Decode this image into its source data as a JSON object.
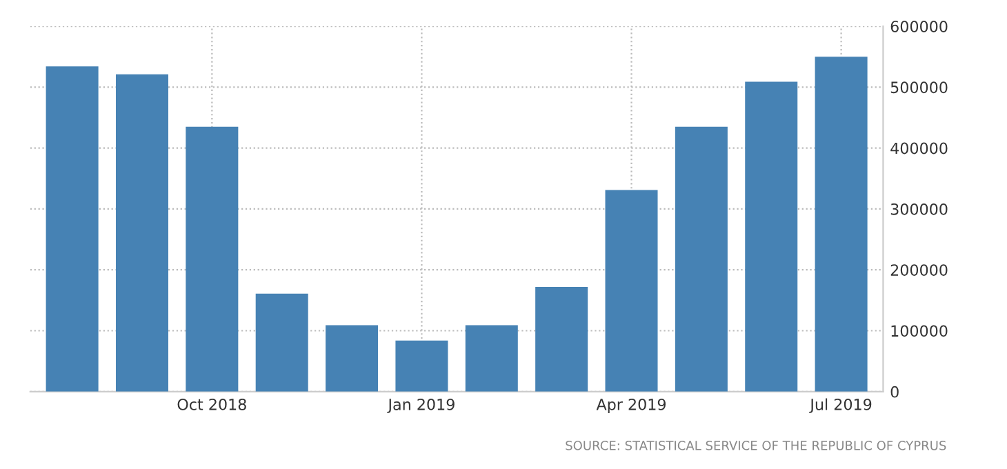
{
  "chart_data": {
    "type": "bar",
    "categories": [
      null,
      null,
      "Oct 2018",
      null,
      null,
      "Jan 2019",
      null,
      null,
      "Apr 2019",
      null,
      null,
      "Jul 2019"
    ],
    "values": [
      534000,
      521000,
      435000,
      161000,
      109000,
      84000,
      109000,
      172000,
      331000,
      435000,
      509000,
      550000
    ],
    "color": "#4682b4",
    "ylim": [
      0,
      600000
    ],
    "yticks": [
      0,
      100000,
      200000,
      300000,
      400000,
      500000,
      600000
    ],
    "grid": true,
    "annotations": [
      "SOURCE: STATISTICAL SERVICE OF THE REPUBLIC OF CYPRUS"
    ]
  }
}
